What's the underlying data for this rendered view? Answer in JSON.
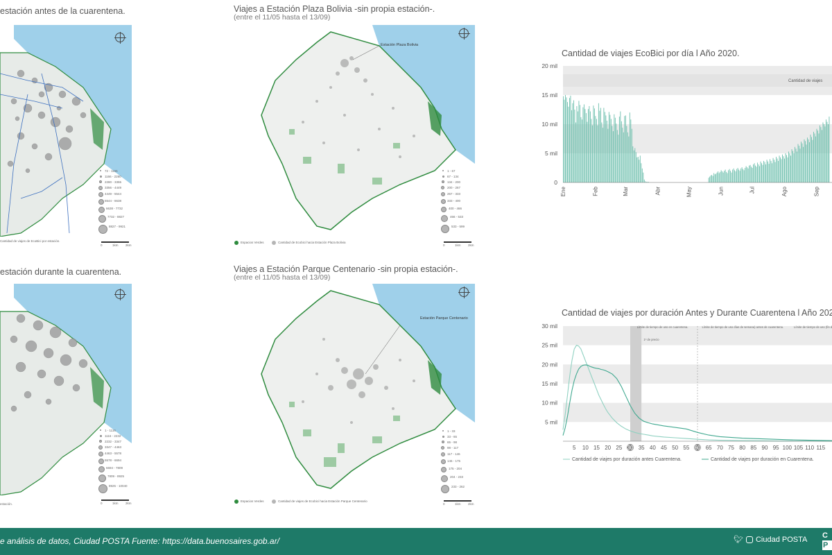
{
  "panels": {
    "map_before": {
      "title": "estación antes de la cuarentena.",
      "legend_caption": "Cantidad de viajes de EcoBici por estación."
    },
    "map_during": {
      "title": "estación durante la cuarentena.",
      "legend_caption": "estación."
    },
    "map_bolivia": {
      "title": "Viajes a Estación Plaza Bolivia -sin propia estación-.",
      "subtitle": "(entre el 11/05 hasta el 13/09)",
      "callout": "Estación Plaza Bolivia",
      "legend_green": "Espacios Verdes",
      "legend_grey": "Cantidad de Ecobici hacia Estación Plaza Bolivia"
    },
    "map_centenario": {
      "title": "Viajes a Estación Parque Centenario -sin propia estación-.",
      "subtitle": "(entre el 11/05 hasta el 13/09)",
      "callout": "Estación Parque Centenario",
      "legend_green": "Espacios Verdes",
      "legend_grey": "Cantidad de viajes de Ecobici hacia Estación Parque Centenario"
    }
  },
  "legends": {
    "before": [
      "72 - 1166",
      "1166 - 2280",
      "2280 - 3355",
      "3356 - 4449",
      "4449 - 5544",
      "5544 - 6638",
      "6638 - 7732",
      "7732 - 8827",
      "8827 - 9921"
    ],
    "during": [
      "1 - 1116",
      "1116 - 2232",
      "2232 - 3347",
      "3347 - 4463",
      "4463 - 5578",
      "5578 - 6694",
      "6694 - 7809",
      "7809 - 8925",
      "8925 - 10040"
    ],
    "bolivia": [
      "1 - 67",
      "67 - 134",
      "134 - 200",
      "200 - 267",
      "267 - 333",
      "333 - 400",
      "400 - 466",
      "466 - 533",
      "533 - 599"
    ],
    "centenario": [
      "1 - 33",
      "33 - 65",
      "65 - 98",
      "98 - 117",
      "117 - 146",
      "146 - 175",
      "175 - 204",
      "204 - 233",
      "233 - 262"
    ],
    "scale_labels": [
      "0",
      "1km",
      "2km"
    ]
  },
  "colors": {
    "green": "#2e8b3e",
    "water": "#9fd0ea",
    "bars": "#6dbfad",
    "line_before": "#8fd1c1",
    "line_during": "#3fa88f",
    "band": "#ebebeb",
    "footer": "#1e7a68",
    "highlight": "#cfcfcf"
  },
  "chart_data": [
    {
      "type": "bar",
      "title": "Cantidad de viajes EcoBici por día l Año 2020.",
      "ylim": [
        0,
        20000
      ],
      "y_ticks": [
        "0",
        "5 mil",
        "10 mil",
        "15 mil",
        "20 mil"
      ],
      "x_ticks": [
        "Ene",
        "Feb",
        "Mar",
        "Abr",
        "May",
        "Jun",
        "Jul",
        "Ago",
        "Sep"
      ],
      "band_label": "Cantidad de viajes",
      "values": [
        14800,
        14200,
        15000,
        14600,
        13800,
        13000,
        14500,
        14900,
        12400,
        13600,
        14100,
        12500,
        10300,
        13100,
        12200,
        14000,
        13300,
        11200,
        10800,
        12900,
        13400,
        12600,
        11900,
        10400,
        12600,
        13100,
        12200,
        10900,
        9800,
        13200,
        12700,
        11400,
        10900,
        9800,
        13600,
        12300,
        12800,
        10300,
        9400,
        12800,
        12100,
        11500,
        10600,
        9200,
        12100,
        11600,
        10900,
        9700,
        8800,
        11700,
        11100,
        10100,
        9000,
        8200,
        11300,
        12200,
        10500,
        9400,
        8600,
        11400,
        11500,
        9700,
        8600,
        7900,
        12000,
        10800,
        9200,
        6200,
        5500,
        5900,
        5200,
        4300,
        4400,
        3900,
        4600,
        3300,
        2400,
        1700,
        500,
        200,
        100,
        100,
        100,
        0,
        0,
        0,
        0,
        0,
        0,
        0,
        0,
        0,
        0,
        0,
        0,
        0,
        0,
        0,
        0,
        0,
        0,
        0,
        0,
        0,
        0,
        0,
        0,
        0,
        0,
        0,
        0,
        0,
        0,
        0,
        0,
        0,
        0,
        0,
        0,
        0,
        0,
        0,
        0,
        0,
        0,
        0,
        0,
        0,
        0,
        0,
        0,
        0,
        0,
        0,
        0,
        0,
        0,
        0,
        0,
        0,
        800,
        1000,
        1200,
        1300,
        1100,
        1600,
        1400,
        1500,
        1700,
        1900,
        1600,
        1800,
        2100,
        1900,
        1700,
        2000,
        2200,
        1800,
        1600,
        2100,
        2300,
        2000,
        1700,
        2200,
        2400,
        2100,
        1900,
        2300,
        2500,
        2200,
        2000,
        2400,
        2600,
        2300,
        2100,
        2500,
        2800,
        2600,
        2400,
        2900,
        3000,
        2700,
        2500,
        3100,
        3300,
        2900,
        2700,
        3400,
        3100,
        2800,
        3600,
        3300,
        3000,
        3700,
        3500,
        3100,
        3900,
        3600,
        3200,
        4000,
        3700,
        3300,
        4200,
        3900,
        3500,
        4400,
        4100,
        3700,
        4600,
        4300,
        4000,
        4800,
        4500,
        4100,
        5000,
        4700,
        4300,
        5300,
        5000,
        4600,
        5700,
        5400,
        5000,
        6100,
        5800,
        5300,
        6600,
        6300,
        5800,
        7000,
        6700,
        6100,
        7400,
        7100,
        6500,
        7700,
        7400,
        6900,
        8200,
        7800,
        7300,
        8700,
        8400,
        7900,
        9200,
        8900,
        8400,
        9800,
        9500,
        9000,
        10300,
        10000,
        9600,
        10800,
        10400,
        10000,
        11300
      ]
    },
    {
      "type": "line",
      "title": "Cantidad de viajes por duración Antes y Durante Cuarentena l Año 2020.",
      "ylim": [
        0,
        30000
      ],
      "xlim": [
        0,
        120
      ],
      "y_ticks": [
        "5 mil",
        "10 mil",
        "15 mil",
        "20 mil",
        "25 mil",
        "30 mil"
      ],
      "x_ticks": [
        "5",
        "10",
        "15",
        "20",
        "25",
        "30",
        "35",
        "40",
        "45",
        "50",
        "55",
        "60",
        "65",
        "70",
        "75",
        "80",
        "85",
        "90",
        "95",
        "100",
        "105",
        "110",
        "115"
      ],
      "highlight_ticks": [
        "30",
        "60"
      ],
      "annotations": [
        "Límite de tiempo de uso en cuarentena.",
        "1º de precio",
        "Límite de tiempo de uso días de semana) antes de cuarentena.",
        "Límite de tiempo de uso (fin de semana) antes de cuarentena."
      ],
      "series": [
        {
          "name": "Cantidad de viajes por duración antes Cuarentena.",
          "x": [
            0,
            1,
            2,
            3,
            4,
            5,
            6,
            7,
            8,
            9,
            10,
            11,
            12,
            13,
            14,
            15,
            16,
            17,
            18,
            19,
            20,
            22,
            24,
            26,
            28,
            30,
            32,
            34,
            36,
            38,
            40,
            45,
            50,
            55,
            60,
            65,
            70,
            80,
            90,
            100,
            110,
            120
          ],
          "values": [
            3000,
            7000,
            12000,
            17000,
            21000,
            24000,
            25000,
            24800,
            24000,
            22500,
            21000,
            19500,
            18000,
            16500,
            15000,
            13500,
            12000,
            10800,
            9600,
            8500,
            7500,
            6000,
            4800,
            3900,
            3200,
            2700,
            2300,
            2000,
            1800,
            1600,
            1400,
            1100,
            900,
            700,
            500,
            350,
            250,
            150,
            100,
            60,
            40,
            20
          ]
        },
        {
          "name": "Cantidad de viajes por duración en Cuarentena.",
          "x": [
            0,
            1,
            2,
            3,
            4,
            5,
            6,
            7,
            8,
            9,
            10,
            11,
            12,
            13,
            14,
            15,
            16,
            17,
            18,
            19,
            20,
            22,
            24,
            26,
            28,
            30,
            32,
            34,
            36,
            38,
            40,
            45,
            50,
            55,
            60,
            65,
            70,
            80,
            90,
            100,
            110,
            120
          ],
          "values": [
            1500,
            3500,
            6500,
            10000,
            13200,
            15800,
            17500,
            18800,
            19500,
            19800,
            19900,
            19800,
            19500,
            19300,
            19100,
            19000,
            18900,
            18700,
            18600,
            18400,
            18100,
            17500,
            16300,
            14300,
            11800,
            9300,
            7300,
            6000,
            5200,
            4800,
            4500,
            4000,
            3600,
            3200,
            2300,
            1600,
            1200,
            800,
            600,
            400,
            250,
            150
          ]
        }
      ]
    }
  ],
  "footer": {
    "text": "e análisis de datos, Ciudad POSTA Fuente: https://data.buenosaires.gob.ar/",
    "brand": "Ciudad POSTA",
    "logo_top": "C",
    "logo_bottom": "P"
  }
}
